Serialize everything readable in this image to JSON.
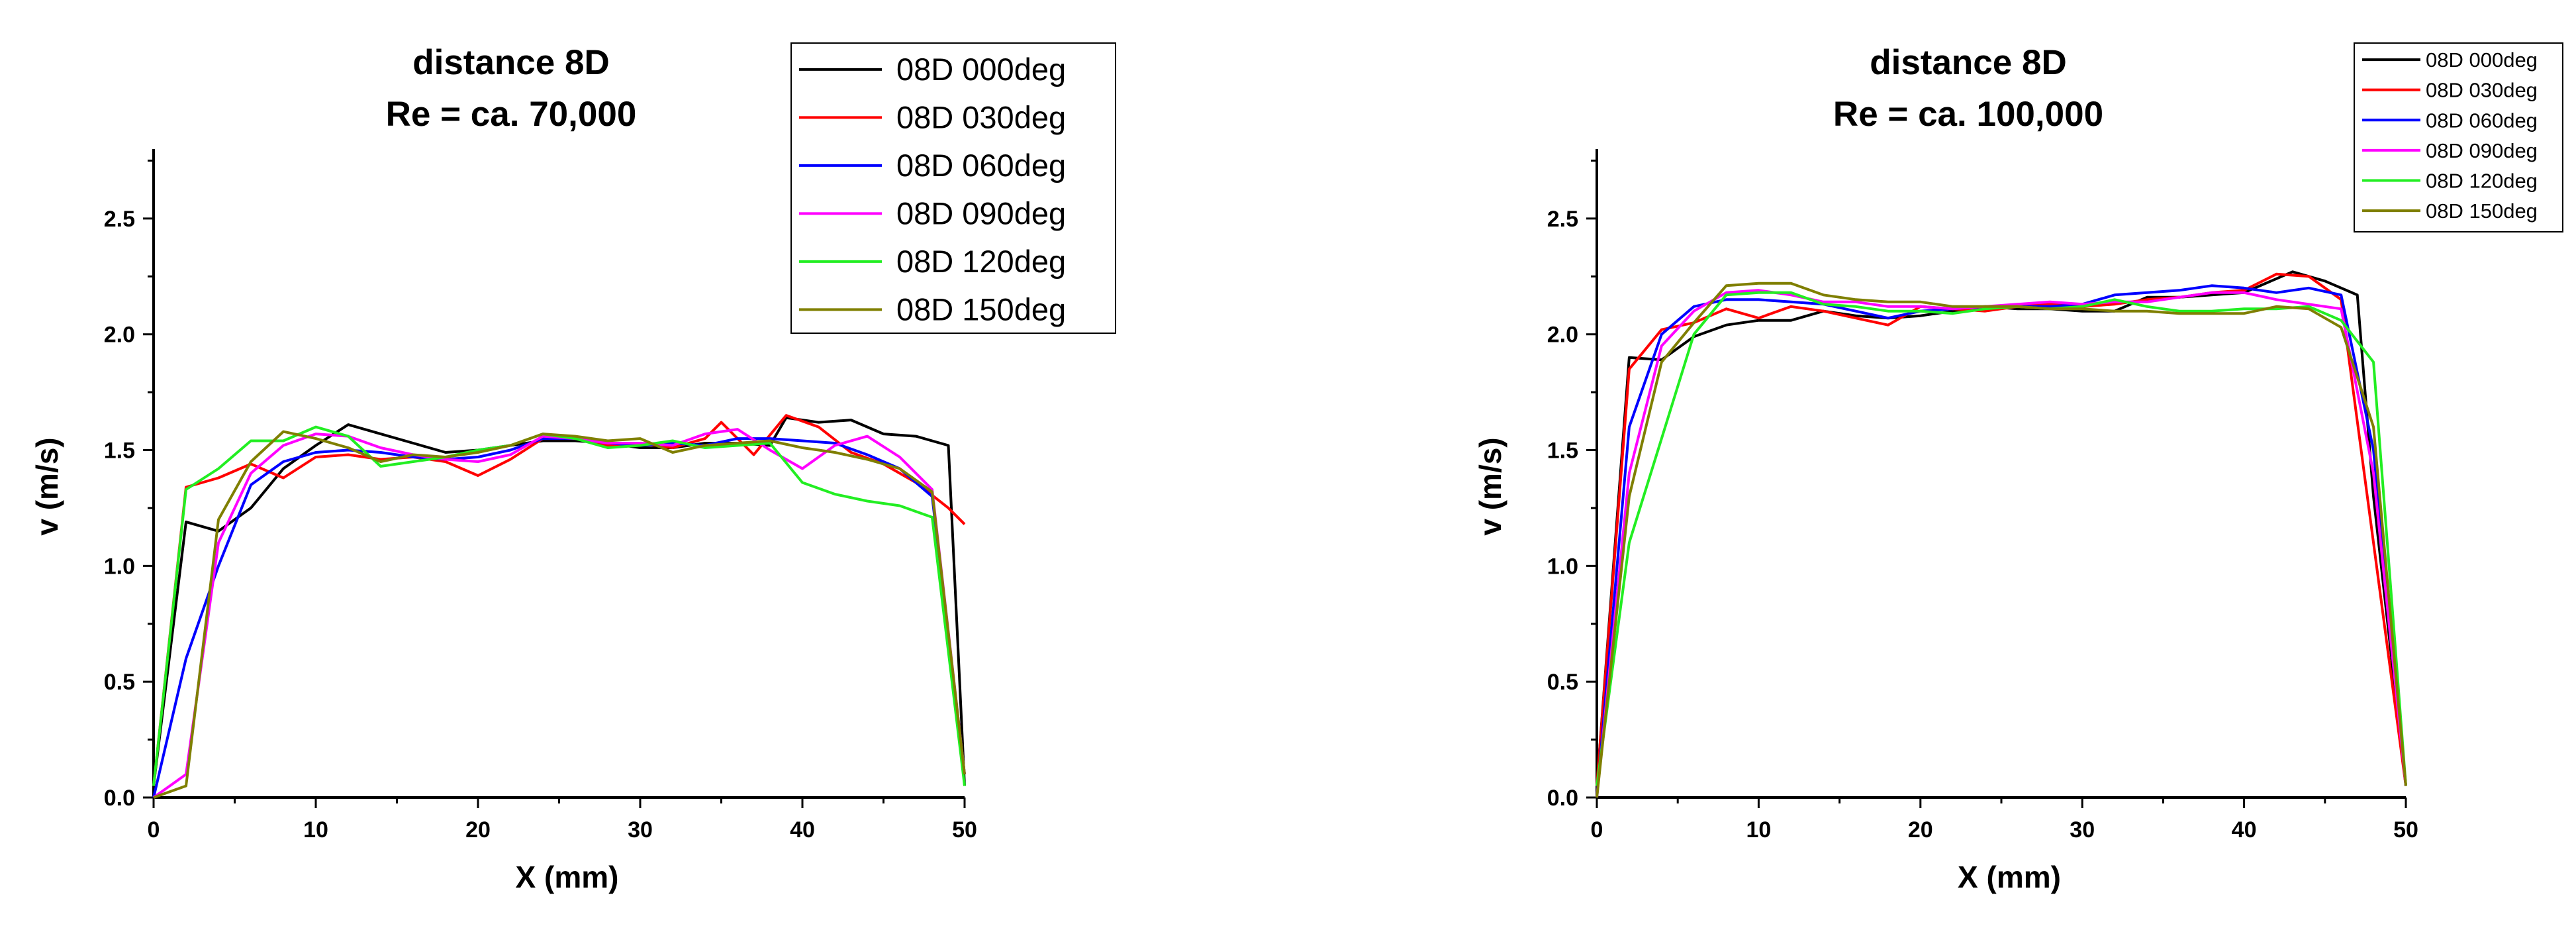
{
  "chart_data": [
    {
      "type": "line",
      "title": [
        "distance 8D",
        "Re = ca. 70,000"
      ],
      "xlabel": "X (mm)",
      "ylabel": "v (m/s)",
      "xlim": [
        0,
        50
      ],
      "ylim": [
        0,
        2.8
      ],
      "xticks": [
        0,
        10,
        20,
        30,
        40,
        50
      ],
      "yticks": [
        0.0,
        0.5,
        1.0,
        1.5,
        2.0,
        2.5
      ],
      "xtick_labels": [
        "0",
        "10",
        "20",
        "30",
        "40",
        "50"
      ],
      "ytick_labels": [
        "0.0",
        "0.5",
        "1.0",
        "1.5",
        "2.0",
        "2.5"
      ],
      "grid": false,
      "legend_position": "top-right",
      "series": [
        {
          "name": "08D 000deg",
          "color": "#000000",
          "x": [
            0,
            2,
            4,
            6,
            8,
            10,
            12,
            14,
            16,
            18,
            20,
            22,
            24,
            26,
            28,
            30,
            32,
            34,
            36,
            38,
            39,
            41,
            43,
            45,
            47,
            49,
            50
          ],
          "y": [
            0.05,
            1.19,
            1.15,
            1.25,
            1.42,
            1.52,
            1.61,
            1.57,
            1.53,
            1.49,
            1.5,
            1.52,
            1.54,
            1.54,
            1.53,
            1.51,
            1.51,
            1.53,
            1.53,
            1.52,
            1.64,
            1.62,
            1.63,
            1.57,
            1.56,
            1.52,
            0.05
          ]
        },
        {
          "name": "08D 030deg",
          "color": "#ff0000",
          "x": [
            0,
            2,
            4,
            6,
            8,
            10,
            12,
            14,
            16,
            18,
            20,
            22,
            24,
            26,
            28,
            30,
            32,
            34,
            35,
            37,
            39,
            41,
            43,
            45,
            47,
            49,
            50
          ],
          "y": [
            0.05,
            1.34,
            1.38,
            1.44,
            1.38,
            1.47,
            1.48,
            1.46,
            1.47,
            1.45,
            1.39,
            1.46,
            1.55,
            1.55,
            1.52,
            1.53,
            1.51,
            1.55,
            1.62,
            1.48,
            1.65,
            1.6,
            1.49,
            1.44,
            1.36,
            1.25,
            1.18
          ]
        },
        {
          "name": "08D 060deg",
          "color": "#0000ff",
          "x": [
            0,
            2,
            4,
            6,
            8,
            10,
            12,
            14,
            16,
            18,
            20,
            22,
            24,
            26,
            28,
            30,
            32,
            34,
            36,
            38,
            40,
            42,
            44,
            46,
            48,
            50
          ],
          "y": [
            0.0,
            0.6,
            1.0,
            1.35,
            1.45,
            1.49,
            1.5,
            1.49,
            1.47,
            1.46,
            1.47,
            1.5,
            1.55,
            1.55,
            1.53,
            1.52,
            1.53,
            1.52,
            1.55,
            1.55,
            1.54,
            1.53,
            1.48,
            1.42,
            1.3,
            0.1
          ]
        },
        {
          "name": "08D 090deg",
          "color": "#ff00ff",
          "x": [
            0,
            2,
            4,
            6,
            8,
            10,
            12,
            14,
            16,
            18,
            20,
            22,
            24,
            26,
            28,
            30,
            32,
            34,
            36,
            38,
            40,
            42,
            44,
            46,
            48,
            50
          ],
          "y": [
            0.0,
            0.1,
            1.1,
            1.4,
            1.52,
            1.57,
            1.56,
            1.51,
            1.48,
            1.46,
            1.45,
            1.48,
            1.56,
            1.55,
            1.53,
            1.53,
            1.52,
            1.57,
            1.59,
            1.5,
            1.42,
            1.52,
            1.56,
            1.47,
            1.33,
            0.1
          ]
        },
        {
          "name": "08D 120deg",
          "color": "#22ee22",
          "x": [
            0,
            2,
            4,
            6,
            8,
            10,
            12,
            14,
            16,
            18,
            20,
            22,
            24,
            26,
            28,
            30,
            32,
            34,
            36,
            38,
            40,
            42,
            44,
            46,
            48,
            50
          ],
          "y": [
            0.05,
            1.33,
            1.42,
            1.54,
            1.54,
            1.6,
            1.56,
            1.43,
            1.45,
            1.47,
            1.5,
            1.52,
            1.57,
            1.55,
            1.51,
            1.52,
            1.54,
            1.51,
            1.52,
            1.53,
            1.36,
            1.31,
            1.28,
            1.26,
            1.21,
            0.05
          ]
        },
        {
          "name": "08D 150deg",
          "color": "#7f7f00",
          "x": [
            0,
            2,
            4,
            6,
            8,
            10,
            12,
            14,
            16,
            18,
            20,
            22,
            24,
            26,
            28,
            30,
            32,
            34,
            36,
            38,
            40,
            42,
            44,
            46,
            48,
            50
          ],
          "y": [
            0.0,
            0.05,
            1.2,
            1.45,
            1.58,
            1.55,
            1.51,
            1.45,
            1.48,
            1.47,
            1.49,
            1.52,
            1.57,
            1.56,
            1.54,
            1.55,
            1.49,
            1.52,
            1.53,
            1.54,
            1.51,
            1.49,
            1.46,
            1.42,
            1.32,
            0.1
          ]
        }
      ]
    },
    {
      "type": "line",
      "title": [
        "distance 8D",
        "Re = ca. 100,000"
      ],
      "xlabel": "X (mm)",
      "ylabel": "v (m/s)",
      "xlim": [
        0,
        50
      ],
      "ylim": [
        0,
        2.8
      ],
      "xticks": [
        0,
        10,
        20,
        30,
        40,
        50
      ],
      "yticks": [
        0.0,
        0.5,
        1.0,
        1.5,
        2.0,
        2.5
      ],
      "xtick_labels": [
        "0",
        "10",
        "20",
        "30",
        "40",
        "50"
      ],
      "ytick_labels": [
        "0.0",
        "0.5",
        "1.0",
        "1.5",
        "2.0",
        "2.5"
      ],
      "grid": false,
      "legend_position": "top-right",
      "series": [
        {
          "name": "08D 000deg",
          "color": "#000000",
          "x": [
            0,
            2,
            4,
            6,
            8,
            10,
            12,
            14,
            16,
            18,
            20,
            22,
            24,
            26,
            28,
            30,
            32,
            34,
            36,
            38,
            40,
            43,
            45,
            47,
            48,
            50
          ],
          "y": [
            0.05,
            1.9,
            1.89,
            1.99,
            2.04,
            2.06,
            2.06,
            2.1,
            2.08,
            2.07,
            2.08,
            2.1,
            2.12,
            2.11,
            2.11,
            2.1,
            2.1,
            2.16,
            2.16,
            2.17,
            2.18,
            2.27,
            2.23,
            2.17,
            1.3,
            0.05
          ]
        },
        {
          "name": "08D 030deg",
          "color": "#ff0000",
          "x": [
            0,
            2,
            4,
            6,
            8,
            10,
            12,
            14,
            16,
            18,
            20,
            22,
            24,
            26,
            28,
            30,
            32,
            34,
            36,
            38,
            40,
            42,
            44,
            46,
            48,
            50
          ],
          "y": [
            0.05,
            1.85,
            2.02,
            2.05,
            2.11,
            2.07,
            2.12,
            2.1,
            2.07,
            2.04,
            2.12,
            2.11,
            2.1,
            2.12,
            2.13,
            2.12,
            2.13,
            2.15,
            2.16,
            2.18,
            2.19,
            2.26,
            2.25,
            2.15,
            1.1,
            0.05
          ]
        },
        {
          "name": "08D 060deg",
          "color": "#0000ff",
          "x": [
            0,
            2,
            4,
            6,
            8,
            10,
            12,
            14,
            16,
            18,
            20,
            22,
            24,
            26,
            28,
            30,
            32,
            34,
            36,
            38,
            40,
            42,
            44,
            46,
            48,
            50
          ],
          "y": [
            0.0,
            1.6,
            2.0,
            2.12,
            2.15,
            2.15,
            2.14,
            2.13,
            2.1,
            2.07,
            2.1,
            2.11,
            2.12,
            2.12,
            2.12,
            2.13,
            2.17,
            2.18,
            2.19,
            2.21,
            2.2,
            2.18,
            2.2,
            2.17,
            1.5,
            0.05
          ]
        },
        {
          "name": "08D 090deg",
          "color": "#ff00ff",
          "x": [
            0,
            2,
            4,
            6,
            8,
            10,
            12,
            14,
            16,
            18,
            20,
            22,
            24,
            26,
            28,
            30,
            32,
            34,
            36,
            38,
            40,
            42,
            44,
            46,
            48,
            50
          ],
          "y": [
            0.0,
            1.4,
            1.95,
            2.1,
            2.18,
            2.19,
            2.17,
            2.14,
            2.14,
            2.12,
            2.12,
            2.11,
            2.12,
            2.13,
            2.14,
            2.13,
            2.14,
            2.14,
            2.16,
            2.18,
            2.18,
            2.15,
            2.13,
            2.11,
            1.4,
            0.05
          ]
        },
        {
          "name": "08D 120deg",
          "color": "#22ee22",
          "x": [
            0,
            2,
            4,
            6,
            8,
            10,
            12,
            14,
            16,
            18,
            20,
            22,
            24,
            26,
            28,
            30,
            32,
            34,
            36,
            38,
            40,
            42,
            44,
            46,
            48,
            50
          ],
          "y": [
            0.05,
            1.1,
            1.55,
            2.0,
            2.17,
            2.18,
            2.18,
            2.13,
            2.12,
            2.1,
            2.1,
            2.09,
            2.11,
            2.12,
            2.11,
            2.12,
            2.15,
            2.12,
            2.1,
            2.1,
            2.11,
            2.11,
            2.12,
            2.06,
            1.88,
            0.05
          ]
        },
        {
          "name": "08D 150deg",
          "color": "#7f7f00",
          "x": [
            0,
            2,
            4,
            6,
            8,
            10,
            12,
            14,
            16,
            18,
            20,
            22,
            24,
            26,
            28,
            30,
            32,
            34,
            36,
            38,
            40,
            42,
            44,
            46,
            48,
            50
          ],
          "y": [
            0.0,
            1.3,
            1.88,
            2.05,
            2.21,
            2.22,
            2.22,
            2.17,
            2.15,
            2.14,
            2.14,
            2.12,
            2.12,
            2.12,
            2.11,
            2.11,
            2.1,
            2.1,
            2.09,
            2.09,
            2.09,
            2.12,
            2.11,
            2.03,
            1.6,
            0.05
          ]
        }
      ]
    }
  ]
}
